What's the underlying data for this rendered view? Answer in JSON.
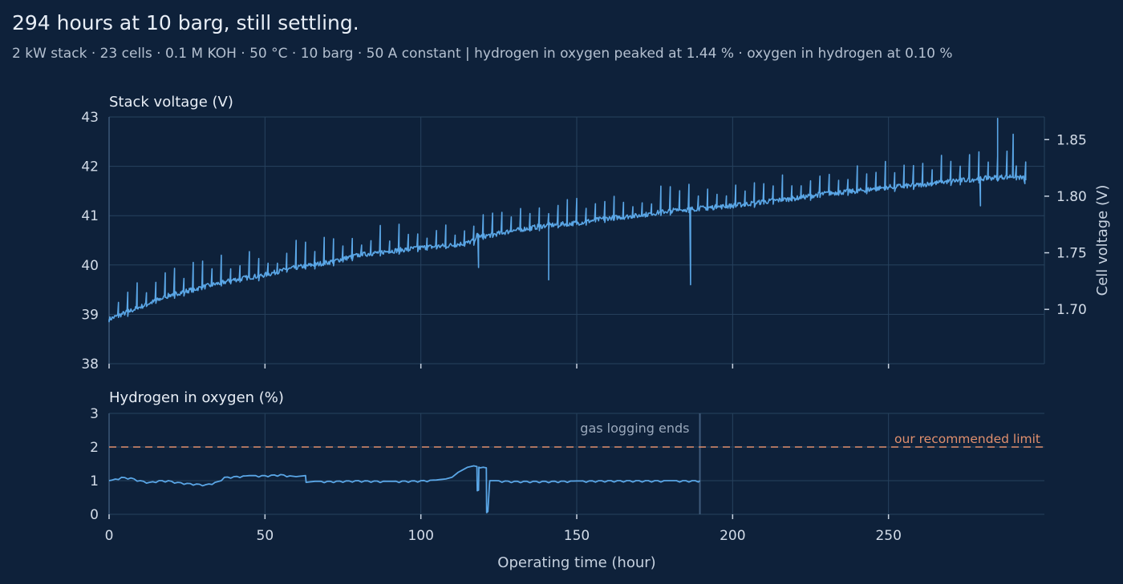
{
  "header": {
    "title": "294 hours at 10 barg, still settling.",
    "subtitle": "2 kW stack · 23 cells · 0.1 M KOH · 50 °C · 10 barg · 50 A constant   |   hydrogen in oxygen peaked at 1.44 % · oxygen in hydrogen at 0.10 %"
  },
  "colors": {
    "background": "#0e213a",
    "series": "#5aa6e6",
    "grid": "#27425e",
    "limit": "#e08f6d"
  },
  "chart_data": [
    {
      "type": "line",
      "title": "Stack voltage (V)",
      "xlabel": "",
      "ylabel": "",
      "y2label": "Cell voltage (V)",
      "xlim": [
        0,
        300
      ],
      "ylim": [
        38,
        43
      ],
      "y2lim": [
        1.652,
        1.87
      ],
      "xticks": [
        0,
        50,
        100,
        150,
        200,
        250
      ],
      "yticks": [
        38,
        39,
        40,
        41,
        42,
        43
      ],
      "y2ticks": [
        1.7,
        1.75,
        1.8,
        1.85
      ],
      "grid": true,
      "series": [
        {
          "name": "",
          "x": [
            0,
            10,
            20,
            30,
            40,
            50,
            60,
            70,
            80,
            90,
            100,
            110,
            115,
            117,
            118,
            120,
            130,
            140,
            150,
            160,
            170,
            180,
            190,
            200,
            210,
            220,
            230,
            240,
            250,
            260,
            270,
            280,
            290,
            294
          ],
          "y": [
            38.9,
            39.15,
            39.4,
            39.55,
            39.7,
            39.8,
            39.95,
            40.05,
            40.2,
            40.28,
            40.35,
            40.4,
            40.45,
            40.5,
            40.6,
            40.58,
            40.7,
            40.8,
            40.85,
            40.95,
            41.0,
            41.1,
            41.15,
            41.2,
            41.28,
            41.35,
            41.45,
            41.5,
            41.58,
            41.62,
            41.7,
            41.75,
            41.8,
            41.75
          ],
          "spikes": {
            "period_hours": 3,
            "typical_up": 0.35,
            "typical_down": 0.1,
            "notable": [
              {
                "x": 118.5,
                "y": 39.95
              },
              {
                "x": 141.0,
                "y": 39.7
              },
              {
                "x": 186.5,
                "y": 39.6
              },
              {
                "x": 279.5,
                "y": 41.2
              },
              {
                "x": 285.0,
                "y": 42.97
              },
              {
                "x": 290.0,
                "y": 42.65
              },
              {
                "x": 293.8,
                "y": 41.65
              }
            ]
          }
        }
      ]
    },
    {
      "type": "line",
      "title": "Hydrogen in oxygen (%)",
      "xlabel": "Operating time (hour)",
      "ylabel": "",
      "xlim": [
        0,
        300
      ],
      "ylim": [
        0,
        3
      ],
      "xticks": [
        0,
        50,
        100,
        150,
        200,
        250
      ],
      "yticks": [
        0,
        1,
        2,
        3
      ],
      "grid": true,
      "series": [
        {
          "name": "",
          "x": [
            0,
            1,
            4,
            7,
            10,
            13,
            16,
            19,
            22,
            25,
            28,
            31,
            34,
            36,
            37,
            40,
            45,
            50,
            55,
            60,
            63,
            63.2,
            66,
            70,
            80,
            90,
            100,
            105,
            108,
            110,
            112,
            113,
            114,
            115,
            116,
            117,
            118,
            118.1,
            118.5,
            118.6,
            119,
            120,
            121,
            121.1,
            121.5,
            122,
            122.1,
            124,
            130,
            140,
            150,
            160,
            170,
            180,
            189.5
          ],
          "y": [
            1.0,
            1.02,
            1.1,
            1.08,
            1.0,
            0.95,
            1.0,
            1.0,
            0.95,
            0.92,
            0.9,
            0.88,
            0.95,
            1.0,
            1.1,
            1.12,
            1.15,
            1.15,
            1.18,
            1.12,
            1.15,
            0.95,
            0.98,
            0.98,
            1.0,
            0.98,
            1.0,
            1.02,
            1.05,
            1.1,
            1.25,
            1.3,
            1.35,
            1.4,
            1.42,
            1.44,
            1.42,
            0.7,
            0.72,
            1.4,
            1.38,
            1.4,
            1.38,
            0.05,
            0.08,
            0.9,
            1.0,
            1.0,
            0.98,
            0.98,
            0.99,
            1.0,
            1.0,
            1.0,
            1.0
          ]
        }
      ],
      "annotations": {
        "gas_logging_end": {
          "x": 189.5,
          "label": "gas logging ends"
        },
        "limit": {
          "y": 2,
          "label": "our recommended limit"
        }
      }
    }
  ]
}
